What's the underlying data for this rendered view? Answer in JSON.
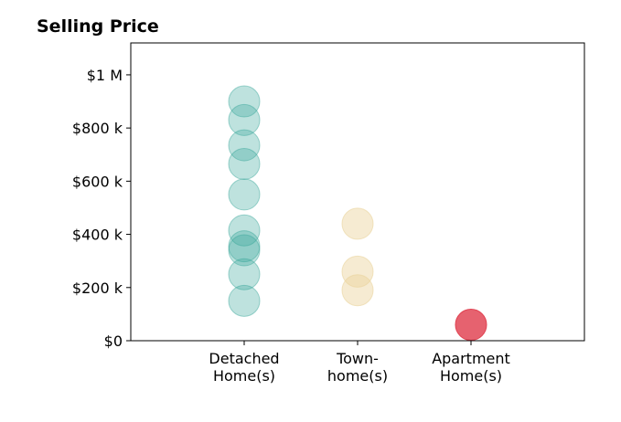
{
  "chart_data": {
    "type": "scatter",
    "title": "Selling Price",
    "xlabel": "",
    "ylabel": "",
    "categories": [
      [
        "Detached",
        "Home(s)"
      ],
      [
        "Town-",
        "home(s)"
      ],
      [
        "Apartment",
        "Home(s)"
      ]
    ],
    "xlim": [
      -1,
      3
    ],
    "ylim": [
      0,
      1120000
    ],
    "yticks": [
      {
        "value": 0,
        "label": "$0"
      },
      {
        "value": 200000,
        "label": "$200 k"
      },
      {
        "value": 400000,
        "label": "$400 k"
      },
      {
        "value": 600000,
        "label": "$600 k"
      },
      {
        "value": 800000,
        "label": "$800 k"
      },
      {
        "value": 1000000,
        "label": "$1 M"
      }
    ],
    "grid": false,
    "series": [
      {
        "category_index": 0,
        "color": "#3aa89b",
        "opacity": 0.33,
        "values": [
          900000,
          830000,
          735000,
          665000,
          550000,
          415000,
          355000,
          340000,
          250000,
          150000
        ]
      },
      {
        "category_index": 1,
        "color": "#ead39c",
        "opacity": 0.45,
        "values": [
          440000,
          260000,
          190000
        ]
      },
      {
        "category_index": 2,
        "color": "#e0404f",
        "opacity": 0.82,
        "values": [
          60000
        ]
      }
    ]
  }
}
